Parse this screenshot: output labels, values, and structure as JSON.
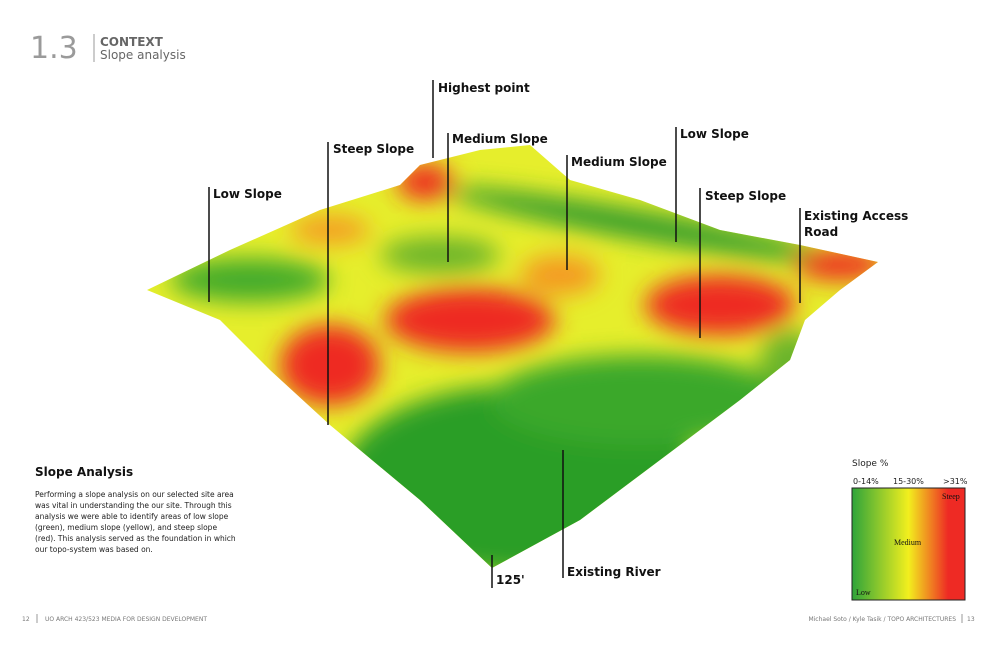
{
  "header": {
    "number": "1.3",
    "section": "CONTEXT",
    "subtitle": "Slope analysis"
  },
  "annotations": [
    {
      "label": "Highest point"
    },
    {
      "label": "Steep Slope"
    },
    {
      "label": "Medium Slope"
    },
    {
      "label": "Medium Slope"
    },
    {
      "label": "Low Slope"
    },
    {
      "label": "Steep Slope"
    },
    {
      "label": [
        "Existing Access",
        "Road"
      ]
    },
    {
      "label": "Low Slope"
    },
    {
      "label": "Existing River"
    },
    {
      "label": "125'"
    }
  ],
  "description": {
    "title": "Slope Analysis",
    "lines": [
      "Performing a slope analysis on our selected site area",
      "was  vital in understanding the our site. Through this",
      "analysis we were able to identify areas of low slope",
      "(green), medium slope (yellow), and steep slope",
      "(red). This analysis served as the foundation in which",
      "our topo-system was based on."
    ]
  },
  "legend": {
    "title": "Slope %",
    "ranges": [
      "0-14%",
      "15-30%",
      ">31%"
    ],
    "steep": "Steep",
    "medium": "Medium",
    "low": "Low"
  },
  "footer": {
    "left_page": "12",
    "left_text": "UO ARCH 423/523 MEDIA FOR DESIGN DEVELOPMENT",
    "right_text": "Michael Soto /  Kyle Tasik  /  TOPO ARCHITECTURES",
    "right_page": "13"
  }
}
